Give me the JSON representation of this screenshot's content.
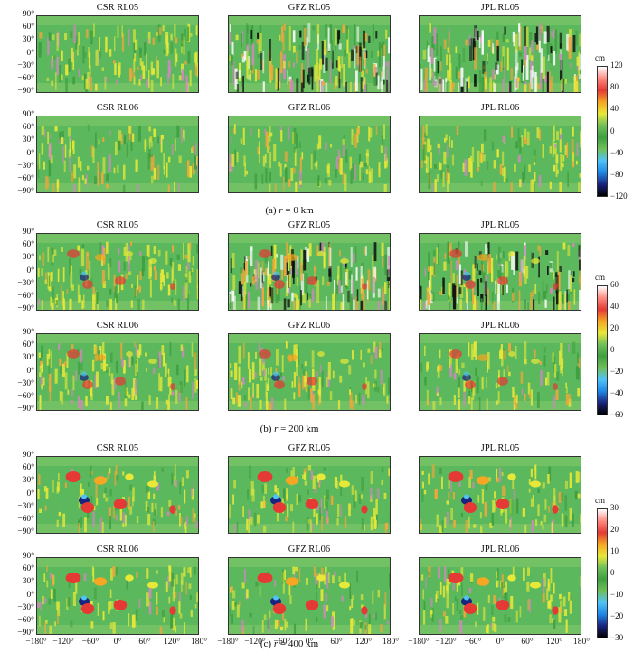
{
  "figure": {
    "rows": [
      {
        "caption_prefix": "(a) ",
        "caption_var": "r",
        "caption_suffix": " = 0 km",
        "titles_top": [
          "CSR RL05",
          "GFZ RL05",
          "JPL RL05"
        ],
        "titles_bottom": [
          "CSR RL06",
          "GFZ RL06",
          "JPL RL06"
        ],
        "colorbar": {
          "unit": "cm",
          "ticks": [
            "120",
            "80",
            "40",
            "0",
            "−40",
            "−80",
            "−120"
          ]
        },
        "noise_level": [
          [
            0.55,
            1.0,
            1.0
          ],
          [
            0.45,
            0.45,
            0.45
          ]
        ],
        "blob_level": [
          [
            0.0,
            0.0,
            0.0
          ],
          [
            0.0,
            0.0,
            0.0
          ]
        ]
      },
      {
        "caption_prefix": "(b) ",
        "caption_var": "r",
        "caption_suffix": " = 200 km",
        "titles_top": [
          "CSR RL05",
          "GFZ RL05",
          "JPL RL05"
        ],
        "titles_bottom": [
          "CSR RL06",
          "GFZ RL06",
          "JPL RL06"
        ],
        "colorbar": {
          "unit": "cm",
          "ticks": [
            "60",
            "40",
            "20",
            "0",
            "−20",
            "−40",
            "−60"
          ]
        },
        "noise_level": [
          [
            0.6,
            1.0,
            0.9
          ],
          [
            0.5,
            0.5,
            0.45
          ]
        ],
        "blob_level": [
          [
            0.45,
            0.45,
            0.45
          ],
          [
            0.45,
            0.45,
            0.45
          ]
        ]
      },
      {
        "caption_prefix": "(c) ",
        "caption_var": "r",
        "caption_suffix": " = 400 km",
        "titles_top": [
          "CSR RL05",
          "GFZ RL05",
          "JPL RL05"
        ],
        "titles_bottom": [
          "CSR RL06",
          "GFZ RL06",
          "JPL RL06"
        ],
        "colorbar": {
          "unit": "cm",
          "ticks": [
            "30",
            "20",
            "10",
            "0",
            "−10",
            "−20",
            "−30"
          ]
        },
        "noise_level": [
          [
            0.3,
            0.35,
            0.35
          ],
          [
            0.25,
            0.3,
            0.35
          ]
        ],
        "blob_level": [
          [
            1.0,
            1.0,
            1.0
          ],
          [
            1.0,
            1.0,
            1.0
          ]
        ]
      }
    ],
    "y_ticks": [
      "90°",
      "60°",
      "30°",
      "0°",
      "−30°",
      "−60°",
      "−90°"
    ],
    "x_ticks": [
      "−180°",
      "−120°",
      "−60°",
      "0°",
      "60°",
      "120°",
      "180°"
    ],
    "colormap": [
      "#000000",
      "#1a237e",
      "#1e88e5",
      "#4fc3f7",
      "#6fbf5a",
      "#3f9f3f",
      "#6fbf5a",
      "#e8e838",
      "#f5a623",
      "#e53935",
      "#ff8a80",
      "#ffffff"
    ]
  }
}
